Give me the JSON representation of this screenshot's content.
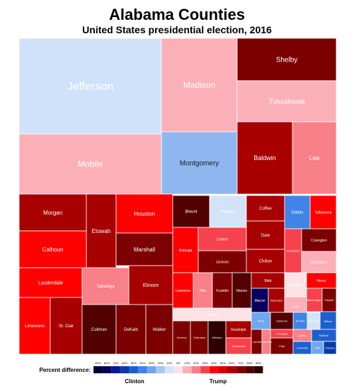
{
  "chart_data": {
    "type": "treemap",
    "title": "Alabama Counties",
    "subtitle": "United States presidential election, 2016",
    "legend": {
      "label": "Percent difference:",
      "left_label": "Clinton",
      "right_label": "Trump",
      "ticks": [
        "90%",
        "80%",
        "70%",
        "60%",
        "50%",
        "40%",
        "30%",
        "20%",
        "10%",
        "0%",
        "10%",
        "20%",
        "30%",
        "40%",
        "50%",
        "60%",
        "70%",
        "80%",
        "90%"
      ],
      "colors": [
        "#000033",
        "#08005c",
        "#0a1a8a",
        "#0b3aa8",
        "#1d5fd0",
        "#3f84e6",
        "#6fa6ee",
        "#a4c7f4",
        "#d3e4fa",
        "#fde2e5",
        "#fbb0b8",
        "#f88088",
        "#f5424d",
        "#ff0000",
        "#d40000",
        "#a80000",
        "#7d0000",
        "#520000",
        "#2e0000"
      ]
    },
    "counties": [
      {
        "name": "Jefferson",
        "fill": "#cfe2fa",
        "text": "#ffffff"
      },
      {
        "name": "Madison",
        "fill": "#fbb0b8",
        "text": "#ffffff"
      },
      {
        "name": "Shelby",
        "fill": "#7d0000",
        "text": "#ffffff"
      },
      {
        "name": "Tuscaloosa",
        "fill": "#fbb0b8",
        "text": "#ffffff"
      },
      {
        "name": "Mobile",
        "fill": "#fbb0b8",
        "text": "#ffffff"
      },
      {
        "name": "Montgomery",
        "fill": "#8fb7ef",
        "text": "#1a1a1a"
      },
      {
        "name": "Baldwin",
        "fill": "#a80000",
        "text": "#ffffff"
      },
      {
        "name": "Lee",
        "fill": "#f88088",
        "text": "#ffffff"
      },
      {
        "name": "Morgan",
        "fill": "#a80000",
        "text": "#ffffff"
      },
      {
        "name": "Etowah",
        "fill": "#a80000",
        "text": "#ffffff"
      },
      {
        "name": "Houston",
        "fill": "#ff0000",
        "text": "#ffffff"
      },
      {
        "name": "Calhoun",
        "fill": "#ff0000",
        "text": "#ffffff"
      },
      {
        "name": "Marshall",
        "fill": "#7d0000",
        "text": "#ffffff"
      },
      {
        "name": "Lauderdale",
        "fill": "#ff0000",
        "text": "#ffffff"
      },
      {
        "name": "Talladega",
        "fill": "#f88088",
        "text": "#ffffff"
      },
      {
        "name": "Elmore",
        "fill": "#a80000",
        "text": "#ffffff"
      },
      {
        "name": "Limestone",
        "fill": "#ff0000",
        "text": "#ffffff"
      },
      {
        "name": "St. Clair",
        "fill": "#a80000",
        "text": "#ffffff"
      },
      {
        "name": "Cullman",
        "fill": "#520000",
        "text": "#ffffff"
      },
      {
        "name": "DeKalb",
        "fill": "#7d0000",
        "text": "#ffffff"
      },
      {
        "name": "Walker",
        "fill": "#7d0000",
        "text": "#ffffff"
      },
      {
        "name": "Blount",
        "fill": "#520000",
        "text": "#ffffff"
      },
      {
        "name": "Russell",
        "fill": "#d3e4fa",
        "text": "#ffffff"
      },
      {
        "name": "Coffee",
        "fill": "#a80000",
        "text": "#ffffff"
      },
      {
        "name": "Dallas",
        "fill": "#3f84e6",
        "text": "#ffffff"
      },
      {
        "name": "Tallapoosa",
        "fill": "#ff0000",
        "text": "#ffffff"
      },
      {
        "name": "Autauga",
        "fill": "#ff0000",
        "text": "#ffffff"
      },
      {
        "name": "Colbert",
        "fill": "#f5424d",
        "text": "#ffffff"
      },
      {
        "name": "Dale",
        "fill": "#a80000",
        "text": "#ffffff"
      },
      {
        "name": "Escambia",
        "fill": "#f5424d",
        "text": "#ffffff"
      },
      {
        "name": "Covington",
        "fill": "#7d0000",
        "text": "#ffffff"
      },
      {
        "name": "Jackson",
        "fill": "#7d0000",
        "text": "#ffffff"
      },
      {
        "name": "Chilton",
        "fill": "#a80000",
        "text": "#ffffff"
      },
      {
        "name": "Chambers",
        "fill": "#fbb0b8",
        "text": "#ffffff"
      },
      {
        "name": "Lawrence",
        "fill": "#ff0000",
        "text": "#ffffff"
      },
      {
        "name": "Pike",
        "fill": "#f88088",
        "text": "#ffffff"
      },
      {
        "name": "Franklin",
        "fill": "#7d0000",
        "text": "#ffffff"
      },
      {
        "name": "Marion",
        "fill": "#520000",
        "text": "#ffffff"
      },
      {
        "name": "Bibb",
        "fill": "#a80000",
        "text": "#ffffff"
      },
      {
        "name": "Barbour",
        "fill": "#fde2e5",
        "text": "#ffffff"
      },
      {
        "name": "Henry",
        "fill": "#ff0000",
        "text": "#ffffff"
      },
      {
        "name": "Macon",
        "fill": "#08005c",
        "text": "#ffffff"
      },
      {
        "name": "Randolph",
        "fill": "#a80000",
        "text": "#ffffff"
      },
      {
        "name": "Butler",
        "fill": "#fbb0b8",
        "text": "#ffffff"
      },
      {
        "name": "Washington",
        "fill": "#f5424d",
        "text": "#ffffff"
      },
      {
        "name": "Fayette",
        "fill": "#7d0000",
        "text": "#ffffff"
      },
      {
        "name": "Clarke",
        "fill": "#fde2e5",
        "text": "#ffffff"
      },
      {
        "name": "Geneva",
        "fill": "#7d0000",
        "text": "#ffffff"
      },
      {
        "name": "Cherokee",
        "fill": "#7d0000",
        "text": "#ffffff"
      },
      {
        "name": "Winston",
        "fill": "#2e0000",
        "text": "#ffffff"
      },
      {
        "name": "Randolph",
        "fill": "#a80000",
        "text": "#ffffff"
      },
      {
        "name": "Perry",
        "fill": "#6fa6ee",
        "text": "#ffffff"
      },
      {
        "name": "Clay",
        "fill": "#a80000",
        "text": "#ffffff"
      },
      {
        "name": "Crenshaw",
        "fill": "#f5424d",
        "text": "#ffffff"
      },
      {
        "name": "Clay",
        "fill": "#7d0000",
        "text": "#ffffff"
      },
      {
        "name": "Sumter",
        "fill": "#3f84e6",
        "text": "#ffffff"
      },
      {
        "name": "Wilcox",
        "fill": "#1d5fd0",
        "text": "#ffffff"
      },
      {
        "name": "Bullock",
        "fill": "#1d5fd0",
        "text": "#ffffff"
      },
      {
        "name": "Lowndes",
        "fill": "#1d5fd0",
        "text": "#ffffff"
      },
      {
        "name": "Hale",
        "fill": "#6fa6ee",
        "text": "#ffffff"
      },
      {
        "name": "Greene",
        "fill": "#0b3aa8",
        "text": "#ffffff"
      },
      {
        "name": "Lamar",
        "fill": "#7d0000",
        "text": "#ffffff"
      },
      {
        "name": "Conecuh",
        "fill": "#f88088",
        "text": "#ffffff"
      },
      {
        "name": "Choctaw",
        "fill": "#f5424d",
        "text": "#ffffff"
      },
      {
        "name": "Coosa",
        "fill": "#f88088",
        "text": "#ffffff"
      },
      {
        "name": "Marengo",
        "fill": "#d3e4fa",
        "text": "#ffffff"
      },
      {
        "name": "Monroe",
        "fill": "#fbb0b8",
        "text": "#ffffff"
      },
      {
        "name": "Pickens",
        "fill": "#fde2e5",
        "text": "#ffffff"
      },
      {
        "name": "Cleburne",
        "fill": "#520000",
        "text": "#ffffff"
      }
    ]
  }
}
